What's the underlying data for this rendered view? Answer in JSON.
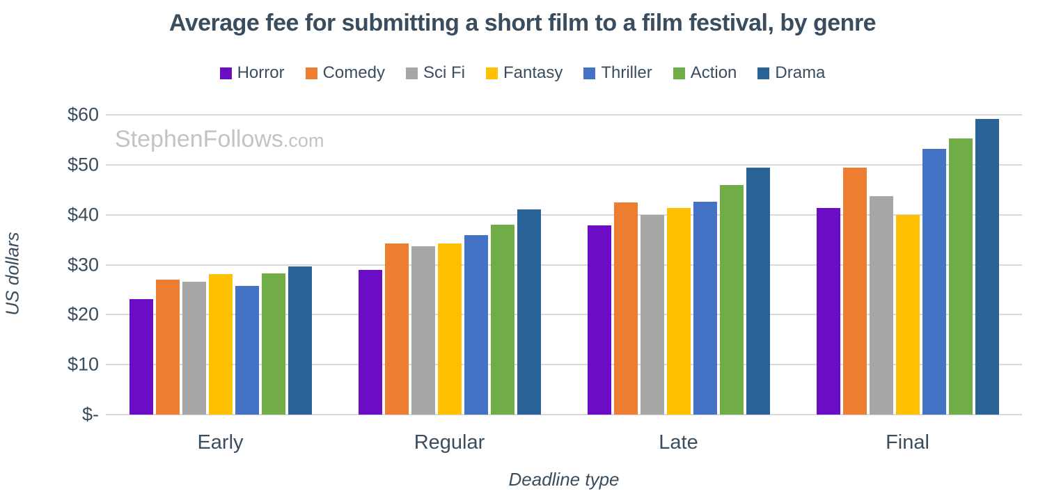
{
  "chart": {
    "title": "Average fee for submitting a short film to a film festival, by genre",
    "watermark": {
      "main": "StephenFollows",
      "suffix": ".com"
    },
    "y_axis_title": "US dollars",
    "x_axis_title": "Deadline type"
  },
  "chart_data": {
    "type": "bar",
    "title": "Average fee for submitting a short film to a film festival, by genre",
    "xlabel": "Deadline type",
    "ylabel": "US dollars",
    "categories": [
      "Early",
      "Regular",
      "Late",
      "Final"
    ],
    "series": [
      {
        "name": "Horror",
        "color": "#6A0DC5",
        "values": [
          23.1,
          28.9,
          37.9,
          41.3
        ]
      },
      {
        "name": "Comedy",
        "color": "#ED7D31",
        "values": [
          27.0,
          34.3,
          42.4,
          49.4
        ]
      },
      {
        "name": "Sci Fi",
        "color": "#A6A6A6",
        "values": [
          26.6,
          33.7,
          39.9,
          43.7
        ]
      },
      {
        "name": "Fantasy",
        "color": "#FFC000",
        "values": [
          28.1,
          34.3,
          41.4,
          39.9
        ]
      },
      {
        "name": "Thriller",
        "color": "#4472C4",
        "values": [
          25.8,
          35.9,
          42.6,
          53.2
        ]
      },
      {
        "name": "Action",
        "color": "#70AD47",
        "values": [
          28.2,
          38.0,
          46.0,
          55.2
        ]
      },
      {
        "name": "Drama",
        "color": "#2A6196",
        "values": [
          29.6,
          41.0,
          49.4,
          59.2
        ]
      }
    ],
    "ylim": [
      0,
      60
    ],
    "yticks": [
      {
        "value": 0,
        "label": "$-"
      },
      {
        "value": 10,
        "label": "$10"
      },
      {
        "value": 20,
        "label": "$20"
      },
      {
        "value": 30,
        "label": "$30"
      },
      {
        "value": 40,
        "label": "$40"
      },
      {
        "value": 50,
        "label": "$50"
      },
      {
        "value": 60,
        "label": "$60"
      }
    ],
    "grid": true,
    "legend_position": "top",
    "group_centers_pct": [
      12.5,
      37.5,
      62.5,
      87.5
    ],
    "text_color": "#3A4D5F",
    "gridline_color": "#D9D9D9",
    "watermark_color": "#C3C3C3"
  }
}
